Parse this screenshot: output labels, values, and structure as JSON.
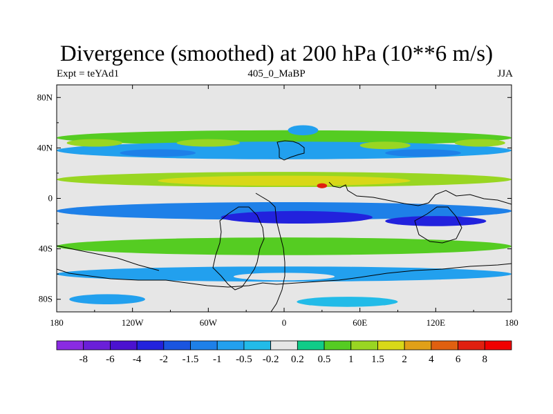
{
  "chart_data": {
    "type": "heatmap",
    "title": "Divergence (smoothed) at 200 hPa (10**6 m/s)",
    "subtitle_left": "Expt = teYAd1",
    "subtitle_center": "405_0_MaBP",
    "subtitle_right": "JJA",
    "x_axis": {
      "range": [
        -180,
        180
      ],
      "ticks": [
        {
          "value": -180,
          "label": "180"
        },
        {
          "value": -120,
          "label": "120W"
        },
        {
          "value": -60,
          "label": "60W"
        },
        {
          "value": 0,
          "label": "0"
        },
        {
          "value": 60,
          "label": "60E"
        },
        {
          "value": 120,
          "label": "120E"
        },
        {
          "value": 180,
          "label": "180"
        }
      ]
    },
    "y_axis": {
      "range": [
        -90,
        90
      ],
      "ticks": [
        {
          "value": 80,
          "label": "80N"
        },
        {
          "value": 40,
          "label": "40N"
        },
        {
          "value": 0,
          "label": "0"
        },
        {
          "value": -40,
          "label": "40S"
        },
        {
          "value": -80,
          "label": "80S"
        }
      ]
    },
    "colorbar": {
      "labels": [
        "-8",
        "-6",
        "-4",
        "-2",
        "-1.5",
        "-1",
        "-0.5",
        "-0.2",
        "0.2",
        "0.5",
        "1",
        "1.5",
        "2",
        "4",
        "6",
        "8"
      ],
      "colors": [
        "#8a2be2",
        "#6a1fd8",
        "#4b12d0",
        "#2222dd",
        "#1a55e0",
        "#1e80e8",
        "#22a0ee",
        "#22bbe8",
        "#e6e6e6",
        "#11cc88",
        "#55cc22",
        "#99d622",
        "#d8d818",
        "#e0a018",
        "#e06010",
        "#e02010",
        "#f00000"
      ]
    },
    "bands": [
      {
        "lat": 82,
        "lon": 0,
        "lon_width": 180,
        "lat_width": 10,
        "bin": 8
      },
      {
        "lat": 48,
        "lon": 0,
        "lon_width": 180,
        "lat_width": 6,
        "bin": 10
      },
      {
        "lat": 38,
        "lon": 0,
        "lon_width": 180,
        "lat_width": 7,
        "bin": 6
      },
      {
        "lat": 44,
        "lon": -150,
        "lon_width": 22,
        "lat_width": 3,
        "bin": 11
      },
      {
        "lat": 44,
        "lon": -60,
        "lon_width": 25,
        "lat_width": 3,
        "bin": 11
      },
      {
        "lat": 42,
        "lon": 80,
        "lon_width": 20,
        "lat_width": 3,
        "bin": 11
      },
      {
        "lat": 44,
        "lon": 155,
        "lon_width": 20,
        "lat_width": 3,
        "bin": 11
      },
      {
        "lat": 36,
        "lon": -100,
        "lon_width": 30,
        "lat_width": 3,
        "bin": 5
      },
      {
        "lat": 36,
        "lon": 110,
        "lon_width": 30,
        "lat_width": 3,
        "bin": 5
      },
      {
        "lat": 54,
        "lon": 15,
        "lon_width": 12,
        "lat_width": 4,
        "bin": 6
      },
      {
        "lat": 26,
        "lon": 0,
        "lon_width": 180,
        "lat_width": 3,
        "bin": 8
      },
      {
        "lat": 15,
        "lon": 0,
        "lon_width": 180,
        "lat_width": 6,
        "bin": 11
      },
      {
        "lat": 14,
        "lon": 0,
        "lon_width": 100,
        "lat_width": 4,
        "bin": 12
      },
      {
        "lat": 10,
        "lon": 30,
        "lon_width": 4,
        "lat_width": 2,
        "bin": 15
      },
      {
        "lat": 2,
        "lon": 0,
        "lon_width": 180,
        "lat_width": 2,
        "bin": 8
      },
      {
        "lat": -10,
        "lon": 0,
        "lon_width": 180,
        "lat_width": 7,
        "bin": 5
      },
      {
        "lat": -15,
        "lon": 10,
        "lon_width": 60,
        "lat_width": 5,
        "bin": 3
      },
      {
        "lat": -18,
        "lon": 120,
        "lon_width": 40,
        "lat_width": 4,
        "bin": 3
      },
      {
        "lat": -28,
        "lon": 0,
        "lon_width": 180,
        "lat_width": 4,
        "bin": 8
      },
      {
        "lat": -38,
        "lon": 0,
        "lon_width": 180,
        "lat_width": 7,
        "bin": 10
      },
      {
        "lat": -50,
        "lon": 0,
        "lon_width": 180,
        "lat_width": 3,
        "bin": 8
      },
      {
        "lat": -60,
        "lon": 0,
        "lon_width": 180,
        "lat_width": 6,
        "bin": 6
      },
      {
        "lat": -62,
        "lon": 0,
        "lon_width": 40,
        "lat_width": 3,
        "bin": 8
      },
      {
        "lat": -76,
        "lon": 0,
        "lon_width": 180,
        "lat_width": 5,
        "bin": 8
      },
      {
        "lat": -80,
        "lon": -140,
        "lon_width": 30,
        "lat_width": 4,
        "bin": 6
      },
      {
        "lat": -82,
        "lon": 50,
        "lon_width": 40,
        "lat_width": 4,
        "bin": 7
      }
    ]
  }
}
